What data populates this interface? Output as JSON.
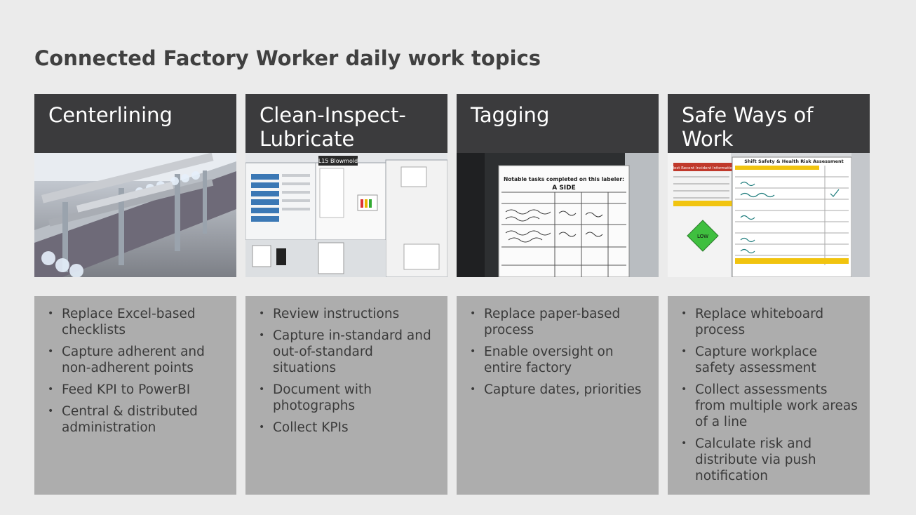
{
  "slide": {
    "title": "Connected Factory Worker daily work topics"
  },
  "cards": [
    {
      "title": "Centerlining",
      "image_caption": "",
      "bullets": [
        "Replace Excel-based checklists",
        "Capture adherent and non-adherent points",
        "Feed KPI to PowerBI",
        "Central & distributed administration"
      ]
    },
    {
      "title": "Clean-Inspect-Lubricate",
      "image_caption": "L15 Blowmold",
      "bullets": [
        "Review instructions",
        "Capture in-standard and out-of-standard situations",
        "Document with photographs",
        "Collect KPIs"
      ]
    },
    {
      "title": "Tagging",
      "image_caption": "Notable tasks completed on this labeler:",
      "image_handwriting": "A SIDE",
      "bullets": [
        "Replace paper-based process",
        "Enable oversight on entire factory",
        "Capture dates, priorities"
      ]
    },
    {
      "title": "Safe Ways of Work",
      "image_caption": "Shift Safety & Health Risk Assessment",
      "image_side_label": "Most Recent Incident Information",
      "image_risk_label": "LOW",
      "bullets": [
        "Replace whiteboard process",
        "Capture workplace safety assessment",
        "Collect assessments from multiple work areas of a line",
        "Calculate risk and distribute via push notification"
      ]
    }
  ],
  "colors": {
    "background": "#ebebeb",
    "header": "#3b3b3d",
    "body": "#adadad",
    "title_text": "#404040"
  }
}
